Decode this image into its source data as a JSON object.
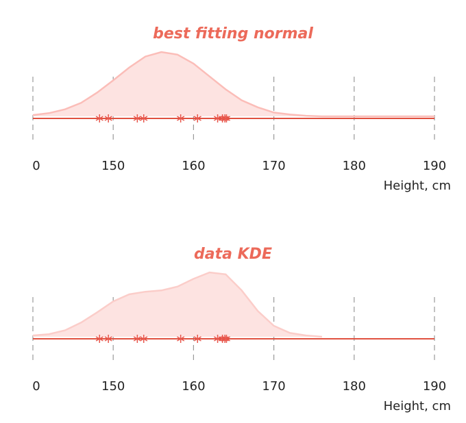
{
  "chart_data": [
    {
      "type": "density",
      "title": "best fitting normal",
      "xlabel": "Height, cm",
      "xlim": [
        140,
        190
      ],
      "xticks": [
        {
          "value": 140,
          "label": "0"
        },
        150,
        160,
        170,
        180,
        190
      ],
      "ylim": [
        0,
        1
      ],
      "points": [
        148.3,
        149.4,
        153.0,
        153.8,
        158.4,
        160.5,
        163.0,
        163.6,
        163.9,
        164.1
      ],
      "curve": {
        "x": [
          140,
          142,
          144,
          146,
          148,
          150,
          152,
          154,
          156,
          158,
          160,
          162,
          164,
          166,
          168,
          170,
          172,
          174,
          176,
          178,
          180,
          182,
          184,
          186,
          188,
          190
        ],
        "y": [
          0.02,
          0.05,
          0.11,
          0.21,
          0.37,
          0.56,
          0.76,
          0.93,
          1.0,
          0.96,
          0.82,
          0.62,
          0.42,
          0.25,
          0.14,
          0.06,
          0.03,
          0.01,
          0,
          0,
          0,
          0,
          0,
          0,
          0,
          0
        ]
      },
      "curve_color": "#fbbdb8",
      "fill_color": "#fde3e1",
      "point_color": "#e8554a",
      "axis_color": "#e0503f"
    },
    {
      "type": "density",
      "title": "data KDE",
      "xlabel": "Height, cm",
      "xlim": [
        140,
        190
      ],
      "xticks": [
        {
          "value": 140,
          "label": "0"
        },
        150,
        160,
        170,
        180,
        190
      ],
      "ylim": [
        0,
        1
      ],
      "points": [
        148.3,
        149.4,
        153.0,
        153.8,
        158.4,
        160.5,
        163.0,
        163.6,
        163.9,
        164.1
      ],
      "curve": {
        "x": [
          140,
          142,
          144,
          146,
          148,
          150,
          152,
          154,
          156,
          158,
          160,
          162,
          164,
          166,
          168,
          170,
          172,
          174,
          176
        ],
        "y": [
          0.02,
          0.04,
          0.1,
          0.22,
          0.38,
          0.55,
          0.66,
          0.7,
          0.72,
          0.78,
          0.9,
          1.0,
          0.97,
          0.72,
          0.4,
          0.17,
          0.06,
          0.02,
          0
        ]
      },
      "curve_color": "#fbcdc9",
      "fill_color": "#fde3e1",
      "point_color": "#e8554a",
      "axis_color": "#e0503f"
    }
  ]
}
